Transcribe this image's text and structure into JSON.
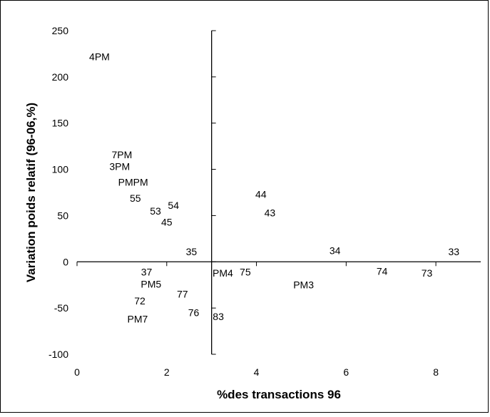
{
  "chart_data": {
    "type": "scatter",
    "xlabel": "%des transactions 96",
    "ylabel": "Variation poids relatif (96-06,%)",
    "xlim": [
      0,
      9
    ],
    "ylim": [
      -100,
      250
    ],
    "x_ticks": [
      0,
      2,
      4,
      6,
      8
    ],
    "y_ticks": [
      -100,
      -50,
      0,
      50,
      100,
      150,
      200,
      250
    ],
    "x_tick_labels": [
      "0",
      "2",
      "4",
      "6",
      "8"
    ],
    "y_tick_labels": [
      "-100",
      "-50",
      "0",
      "50",
      "100",
      "150",
      "200",
      "250"
    ],
    "y_axis_at_x": 3,
    "x_axis_at_y": 0,
    "grid": false,
    "legend": "none",
    "points": [
      {
        "label": "4PM",
        "x": 0.5,
        "y": 222
      },
      {
        "label": "7PM",
        "x": 1.0,
        "y": 116
      },
      {
        "label": "3PM",
        "x": 0.95,
        "y": 103
      },
      {
        "label": "PMPM",
        "x": 1.25,
        "y": 86
      },
      {
        "label": "55",
        "x": 1.3,
        "y": 69
      },
      {
        "label": "54",
        "x": 2.15,
        "y": 61
      },
      {
        "label": "53",
        "x": 1.75,
        "y": 55
      },
      {
        "label": "45",
        "x": 2.0,
        "y": 43
      },
      {
        "label": "35",
        "x": 2.55,
        "y": 11
      },
      {
        "label": "44",
        "x": 4.1,
        "y": 73
      },
      {
        "label": "43",
        "x": 4.3,
        "y": 53
      },
      {
        "label": "34",
        "x": 5.75,
        "y": 12
      },
      {
        "label": "33",
        "x": 8.4,
        "y": 11
      },
      {
        "label": "74",
        "x": 6.8,
        "y": -10
      },
      {
        "label": "73",
        "x": 7.8,
        "y": -12
      },
      {
        "label": "37",
        "x": 1.55,
        "y": -11
      },
      {
        "label": "PM4",
        "x": 3.25,
        "y": -12
      },
      {
        "label": "75",
        "x": 3.75,
        "y": -11
      },
      {
        "label": "PM5",
        "x": 1.65,
        "y": -24
      },
      {
        "label": "PM3",
        "x": 5.05,
        "y": -25
      },
      {
        "label": "77",
        "x": 2.35,
        "y": -35
      },
      {
        "label": "72",
        "x": 1.4,
        "y": -42
      },
      {
        "label": "76",
        "x": 2.6,
        "y": -55
      },
      {
        "label": "83",
        "x": 3.15,
        "y": -59
      },
      {
        "label": "PM7",
        "x": 1.35,
        "y": -62
      }
    ]
  }
}
